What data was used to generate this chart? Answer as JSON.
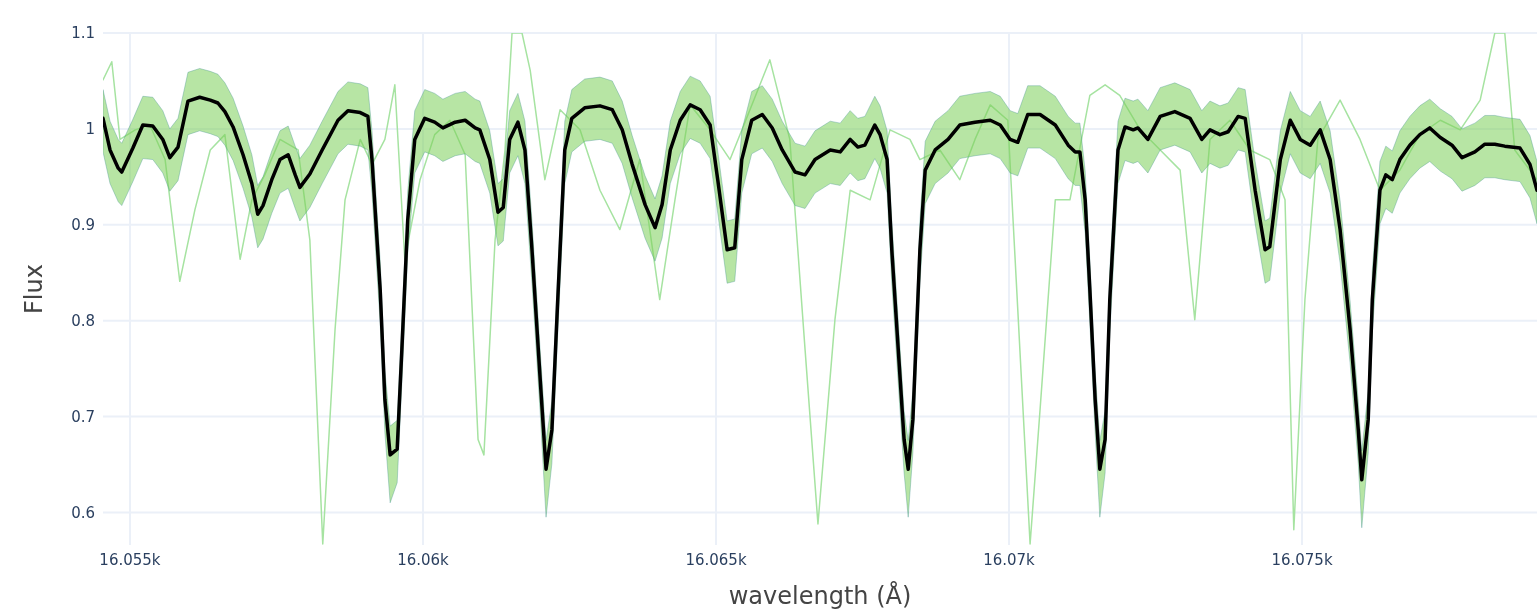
{
  "chart_data": {
    "type": "line",
    "xlabel": "wavelength (Å)",
    "ylabel": "Flux",
    "xlim": [
      16054.54,
      16079.01
    ],
    "ylim": [
      0.566,
      1.1
    ],
    "xticks": [
      {
        "value": 16055,
        "label": "16.055k"
      },
      {
        "value": 16060,
        "label": "16.06k"
      },
      {
        "value": 16065,
        "label": "16.065k"
      },
      {
        "value": 16070,
        "label": "16.07k"
      },
      {
        "value": 16075,
        "label": "16.075k"
      }
    ],
    "yticks": [
      0.6,
      0.7,
      0.8,
      0.9,
      1,
      1.1
    ],
    "grid": true,
    "series": [
      {
        "color": "#a6e3a1",
        "x": [
          16054.54,
          16054.69,
          16054.83,
          16055.09,
          16055.34,
          16055.6,
          16055.85,
          16056.11,
          16056.37,
          16056.62,
          16056.88,
          16057.08,
          16057.3,
          16057.56,
          16057.87,
          16058.07,
          16058.29,
          16058.5,
          16058.67,
          16058.93,
          16059.13,
          16059.35,
          16059.52,
          16059.69,
          16059.95,
          16060.2,
          16060.46,
          16060.72,
          16060.94,
          16061.04,
          16061.23,
          16061.4,
          16061.52,
          16061.69,
          16061.83,
          16062.08,
          16062.34,
          16062.68,
          16063.02,
          16063.36,
          16063.7,
          16064.04,
          16064.3,
          16064.56,
          16064.9,
          16065.24,
          16065.58,
          16065.92,
          16066.26,
          16066.52,
          16066.74,
          16067.03,
          16067.29,
          16067.63,
          16067.97,
          16068.31,
          16068.48,
          16068.82,
          16069.16,
          16069.42,
          16069.68,
          16069.98,
          16070.36,
          16070.53,
          16070.79,
          16071.04,
          16071.38,
          16071.64,
          16071.89,
          16072.24,
          16072.58,
          16072.92,
          16073.17,
          16073.43,
          16073.77,
          16074.11,
          16074.45,
          16074.71,
          16074.86,
          16075.05,
          16075.27,
          16075.65,
          16075.99,
          16076.33,
          16076.67,
          16077.01,
          16077.36,
          16077.7,
          16078.04,
          16078.29,
          16078.46,
          16078.63,
          16079.01
        ],
        "values": [
          1.051,
          1.07,
          0.989,
          0.999,
          1.004,
          0.968,
          0.841,
          0.916,
          0.978,
          0.994,
          0.864,
          0.926,
          0.952,
          0.989,
          0.978,
          0.884,
          0.567,
          0.791,
          0.926,
          0.989,
          0.963,
          0.989,
          1.046,
          0.864,
          0.947,
          0.994,
          1.009,
          0.973,
          0.676,
          0.66,
          0.884,
          0.978,
          1.1,
          1.1,
          1.061,
          0.947,
          1.02,
          0.999,
          0.936,
          0.895,
          0.968,
          0.822,
          0.926,
          1.025,
          0.999,
          0.968,
          1.02,
          1.072,
          0.989,
          0.77,
          0.588,
          0.801,
          0.936,
          0.926,
          0.999,
          0.989,
          0.968,
          0.978,
          0.947,
          0.989,
          1.025,
          1.009,
          0.567,
          0.707,
          0.926,
          0.926,
          1.035,
          1.046,
          1.035,
          0.999,
          0.978,
          0.957,
          0.801,
          0.989,
          1.009,
          0.978,
          0.968,
          0.926,
          0.582,
          0.822,
          0.989,
          1.03,
          0.989,
          0.936,
          0.957,
          0.994,
          1.009,
          0.999,
          1.03,
          1.1,
          1.1,
          0.978,
          0.947
        ]
      },
      {
        "color": "#000000",
        "x": [
          16054.54,
          16054.66,
          16054.8,
          16054.86,
          16055.05,
          16055.22,
          16055.39,
          16055.56,
          16055.68,
          16055.82,
          16055.99,
          16056.19,
          16056.37,
          16056.5,
          16056.62,
          16056.76,
          16056.93,
          16057.08,
          16057.18,
          16057.27,
          16057.42,
          16057.56,
          16057.7,
          16057.82,
          16057.9,
          16058.07,
          16058.28,
          16058.55,
          16058.72,
          16058.93,
          16059.06,
          16059.13,
          16059.27,
          16059.35,
          16059.44,
          16059.56,
          16059.64,
          16059.74,
          16059.86,
          16060.03,
          16060.2,
          16060.34,
          16060.55,
          16060.72,
          16060.89,
          16060.97,
          16061.14,
          16061.28,
          16061.37,
          16061.48,
          16061.62,
          16061.74,
          16061.86,
          16062.0,
          16062.1,
          16062.2,
          16062.3,
          16062.42,
          16062.54,
          16062.76,
          16063.02,
          16063.23,
          16063.4,
          16063.57,
          16063.79,
          16063.96,
          16064.08,
          16064.22,
          16064.39,
          16064.56,
          16064.73,
          16064.9,
          16065.03,
          16065.19,
          16065.32,
          16065.44,
          16065.61,
          16065.79,
          16065.96,
          16066.13,
          16066.35,
          16066.52,
          16066.69,
          16066.95,
          16067.12,
          16067.29,
          16067.42,
          16067.54,
          16067.71,
          16067.8,
          16067.92,
          16068.0,
          16068.11,
          16068.21,
          16068.28,
          16068.36,
          16068.48,
          16068.57,
          16068.74,
          16068.96,
          16069.16,
          16069.42,
          16069.68,
          16069.85,
          16070.02,
          16070.15,
          16070.32,
          16070.53,
          16070.79,
          16071.01,
          16071.13,
          16071.21,
          16071.3,
          16071.38,
          16071.47,
          16071.55,
          16071.64,
          16071.72,
          16071.86,
          16071.98,
          16072.12,
          16072.2,
          16072.37,
          16072.58,
          16072.83,
          16073.09,
          16073.29,
          16073.43,
          16073.6,
          16073.74,
          16073.91,
          16074.03,
          16074.2,
          16074.37,
          16074.45,
          16074.63,
          16074.8,
          16074.97,
          16075.14,
          16075.31,
          16075.48,
          16075.65,
          16075.82,
          16075.96,
          16076.02,
          16076.13,
          16076.2,
          16076.33,
          16076.43,
          16076.54,
          16076.67,
          16076.84,
          16077.01,
          16077.18,
          16077.36,
          16077.56,
          16077.73,
          16077.95,
          16078.12,
          16078.29,
          16078.46,
          16078.72,
          16078.89,
          16079.01
        ],
        "values": [
          1.011,
          0.978,
          0.959,
          0.955,
          0.98,
          1.004,
          1.003,
          0.989,
          0.97,
          0.981,
          1.029,
          1.033,
          1.03,
          1.027,
          1.018,
          1.002,
          0.973,
          0.943,
          0.911,
          0.92,
          0.947,
          0.968,
          0.973,
          0.952,
          0.939,
          0.953,
          0.978,
          1.009,
          1.019,
          1.017,
          1.013,
          0.968,
          0.832,
          0.718,
          0.66,
          0.666,
          0.77,
          0.905,
          0.989,
          1.011,
          1.007,
          1.001,
          1.007,
          1.009,
          1.001,
          0.999,
          0.968,
          0.913,
          0.918,
          0.989,
          1.007,
          0.978,
          0.874,
          0.739,
          0.645,
          0.686,
          0.822,
          0.978,
          1.011,
          1.022,
          1.024,
          1.02,
          0.999,
          0.963,
          0.921,
          0.897,
          0.921,
          0.978,
          1.009,
          1.025,
          1.02,
          1.004,
          0.947,
          0.874,
          0.876,
          0.968,
          1.009,
          1.015,
          1.001,
          0.978,
          0.955,
          0.952,
          0.968,
          0.978,
          0.976,
          0.989,
          0.981,
          0.983,
          1.004,
          0.994,
          0.968,
          0.874,
          0.77,
          0.676,
          0.645,
          0.697,
          0.874,
          0.957,
          0.978,
          0.989,
          1.004,
          1.007,
          1.009,
          1.004,
          0.989,
          0.986,
          1.015,
          1.015,
          1.004,
          0.983,
          0.976,
          0.976,
          0.926,
          0.832,
          0.718,
          0.645,
          0.676,
          0.822,
          0.978,
          1.002,
          0.999,
          1.001,
          0.989,
          1.013,
          1.018,
          1.011,
          0.989,
          0.999,
          0.994,
          0.997,
          1.013,
          1.011,
          0.936,
          0.874,
          0.877,
          0.968,
          1.009,
          0.989,
          0.983,
          0.999,
          0.968,
          0.895,
          0.791,
          0.686,
          0.634,
          0.697,
          0.822,
          0.936,
          0.952,
          0.947,
          0.968,
          0.983,
          0.994,
          1.001,
          0.991,
          0.983,
          0.97,
          0.976,
          0.984,
          0.984,
          0.982,
          0.98,
          0.963,
          0.936
        ],
        "upper": [
          1.041,
          1.008,
          0.989,
          0.985,
          1.01,
          1.034,
          1.033,
          1.019,
          1.0,
          1.011,
          1.059,
          1.063,
          1.06,
          1.057,
          1.048,
          1.032,
          1.003,
          0.973,
          0.941,
          0.95,
          0.977,
          0.998,
          1.003,
          0.982,
          0.969,
          0.983,
          1.008,
          1.039,
          1.049,
          1.047,
          1.043,
          0.998,
          0.862,
          0.748,
          0.69,
          0.696,
          0.8,
          0.935,
          1.019,
          1.041,
          1.037,
          1.031,
          1.037,
          1.039,
          1.031,
          1.029,
          0.998,
          0.943,
          0.948,
          1.019,
          1.037,
          1.008,
          0.904,
          0.769,
          0.675,
          0.716,
          0.852,
          1.008,
          1.041,
          1.052,
          1.054,
          1.05,
          1.029,
          0.993,
          0.951,
          0.927,
          0.951,
          1.008,
          1.039,
          1.055,
          1.05,
          1.034,
          0.977,
          0.904,
          0.906,
          0.998,
          1.039,
          1.045,
          1.031,
          1.008,
          0.985,
          0.982,
          0.998,
          1.008,
          1.006,
          1.019,
          1.011,
          1.013,
          1.034,
          1.024,
          0.998,
          0.904,
          0.8,
          0.706,
          0.675,
          0.727,
          0.904,
          0.987,
          1.008,
          1.019,
          1.034,
          1.037,
          1.039,
          1.034,
          1.019,
          1.016,
          1.045,
          1.045,
          1.034,
          1.013,
          1.006,
          1.006,
          0.956,
          0.862,
          0.748,
          0.675,
          0.706,
          0.852,
          1.008,
          1.032,
          1.029,
          1.031,
          1.019,
          1.043,
          1.048,
          1.041,
          1.019,
          1.029,
          1.024,
          1.027,
          1.043,
          1.041,
          0.966,
          0.904,
          0.907,
          0.998,
          1.039,
          1.019,
          1.013,
          1.029,
          0.998,
          0.925,
          0.821,
          0.716,
          0.664,
          0.727,
          0.852,
          0.966,
          0.982,
          0.977,
          0.998,
          1.013,
          1.024,
          1.031,
          1.021,
          1.013,
          1.0,
          1.006,
          1.014,
          1.014,
          1.012,
          1.01,
          0.993,
          0.966
        ],
        "lower": [
          0.976,
          0.943,
          0.924,
          0.92,
          0.945,
          0.969,
          0.968,
          0.954,
          0.935,
          0.946,
          0.994,
          0.998,
          0.995,
          0.992,
          0.983,
          0.967,
          0.938,
          0.908,
          0.876,
          0.885,
          0.912,
          0.933,
          0.938,
          0.917,
          0.904,
          0.918,
          0.943,
          0.974,
          0.984,
          0.982,
          0.978,
          0.933,
          0.797,
          0.683,
          0.61,
          0.631,
          0.735,
          0.87,
          0.954,
          0.976,
          0.972,
          0.966,
          0.972,
          0.974,
          0.966,
          0.964,
          0.933,
          0.878,
          0.883,
          0.954,
          0.972,
          0.943,
          0.839,
          0.704,
          0.595,
          0.651,
          0.787,
          0.943,
          0.976,
          0.987,
          0.989,
          0.985,
          0.964,
          0.928,
          0.886,
          0.862,
          0.886,
          0.943,
          0.974,
          0.99,
          0.985,
          0.969,
          0.912,
          0.839,
          0.841,
          0.933,
          0.974,
          0.98,
          0.966,
          0.943,
          0.92,
          0.917,
          0.933,
          0.943,
          0.941,
          0.954,
          0.946,
          0.948,
          0.969,
          0.959,
          0.933,
          0.839,
          0.735,
          0.641,
          0.595,
          0.662,
          0.839,
          0.922,
          0.943,
          0.954,
          0.969,
          0.972,
          0.974,
          0.969,
          0.954,
          0.951,
          0.98,
          0.98,
          0.969,
          0.948,
          0.941,
          0.941,
          0.891,
          0.797,
          0.683,
          0.595,
          0.641,
          0.787,
          0.943,
          0.967,
          0.964,
          0.966,
          0.954,
          0.978,
          0.983,
          0.976,
          0.954,
          0.964,
          0.959,
          0.962,
          0.978,
          0.976,
          0.901,
          0.839,
          0.842,
          0.933,
          0.974,
          0.954,
          0.948,
          0.964,
          0.933,
          0.86,
          0.756,
          0.651,
          0.584,
          0.662,
          0.787,
          0.901,
          0.917,
          0.912,
          0.933,
          0.948,
          0.959,
          0.966,
          0.956,
          0.948,
          0.935,
          0.941,
          0.949,
          0.949,
          0.947,
          0.945,
          0.928,
          0.901
        ]
      }
    ]
  }
}
